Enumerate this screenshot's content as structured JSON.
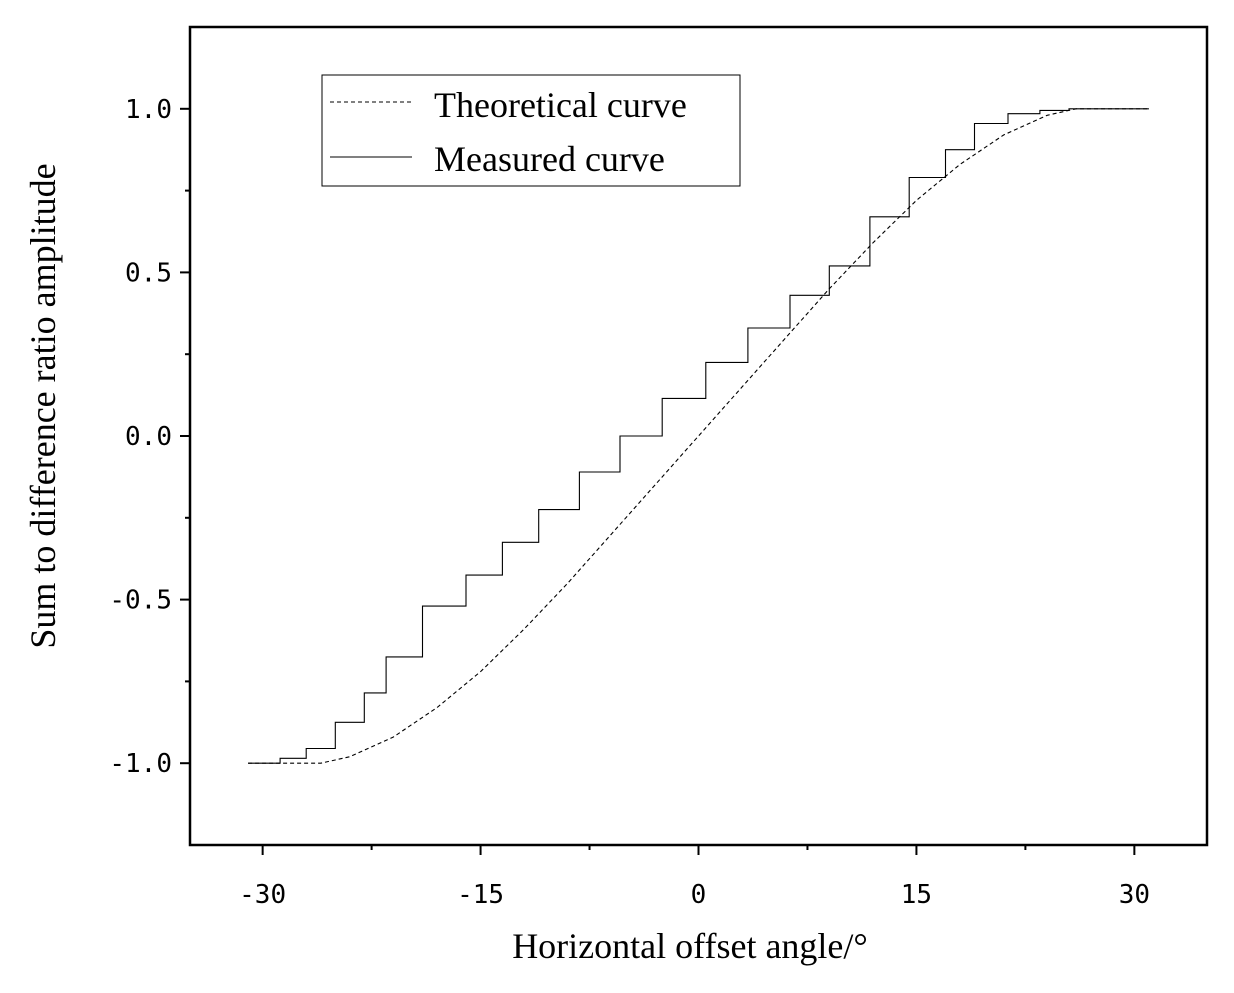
{
  "chart_data": {
    "type": "line",
    "title": "",
    "xlabel": "Horizontal offset angle/°",
    "ylabel": "Sum to difference ratio amplitude",
    "xlim": [
      -35,
      35
    ],
    "ylim": [
      -1.25,
      1.25
    ],
    "xticks": [
      -30,
      -15,
      0,
      15,
      30
    ],
    "xtick_labels": [
      "-30",
      "-15",
      "0",
      "15",
      "30"
    ],
    "yticks": [
      -1.0,
      -0.5,
      0.0,
      0.5,
      1.0
    ],
    "ytick_labels": [
      "-1.0",
      "-0.5",
      "0.0",
      "0.5",
      "1.0"
    ],
    "legend_position": "top-left",
    "grid": false,
    "series": [
      {
        "name": "Theoretical curve",
        "style": "dashed",
        "color": "#000000",
        "x": [
          -31,
          -26,
          -24,
          -21,
          -18,
          -15,
          -12,
          -9,
          -6,
          -3,
          0,
          3,
          6,
          9,
          12,
          15,
          18,
          21,
          24,
          26,
          31
        ],
        "y": [
          -1.0,
          -1.0,
          -0.98,
          -0.92,
          -0.83,
          -0.72,
          -0.59,
          -0.45,
          -0.3,
          -0.15,
          0.0,
          0.15,
          0.3,
          0.45,
          0.59,
          0.72,
          0.83,
          0.92,
          0.98,
          1.0,
          1.0
        ]
      },
      {
        "name": "Measured curve",
        "style": "solid",
        "color": "#000000",
        "x": [
          -31.0,
          -28.8,
          -28.8,
          -27.0,
          -27.0,
          -25.0,
          -25.0,
          -23.0,
          -23.0,
          -21.5,
          -21.5,
          -19.0,
          -19.0,
          -17.5,
          -17.5,
          -16.0,
          -16.0,
          -13.5,
          -13.5,
          -11.0,
          -11.0,
          -8.2,
          -8.2,
          -5.4,
          -5.4,
          -2.5,
          -2.5,
          0.5,
          0.5,
          3.4,
          3.4,
          6.3,
          6.3,
          9.0,
          9.0,
          11.8,
          11.8,
          14.5,
          14.5,
          17.0,
          17.0,
          19.0,
          19.0,
          21.3,
          21.3,
          23.5,
          23.5,
          25.5,
          25.5,
          31.0
        ],
        "y": [
          -1.0,
          -1.0,
          -0.985,
          -0.985,
          -0.955,
          -0.955,
          -0.875,
          -0.875,
          -0.785,
          -0.785,
          -0.675,
          -0.675,
          -0.52,
          -0.52,
          -0.52,
          -0.52,
          -0.425,
          -0.425,
          -0.325,
          -0.325,
          -0.225,
          -0.225,
          -0.11,
          -0.11,
          0.0,
          0.0,
          0.115,
          0.115,
          0.225,
          0.225,
          0.33,
          0.33,
          0.43,
          0.43,
          0.52,
          0.52,
          0.67,
          0.67,
          0.79,
          0.79,
          0.875,
          0.875,
          0.955,
          0.955,
          0.985,
          0.985,
          0.995,
          0.995,
          1.0,
          1.0
        ]
      }
    ]
  }
}
